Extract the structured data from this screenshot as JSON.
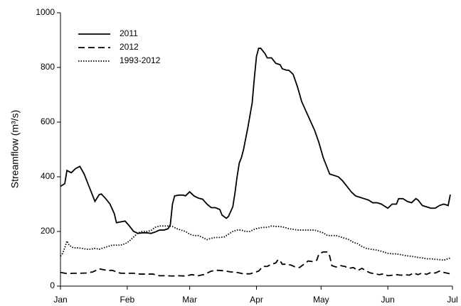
{
  "chart_data": {
    "type": "line",
    "y_label": "Streamflow (m³/s)",
    "xlim": [
      0,
      182
    ],
    "xticks": [
      {
        "value": 0,
        "label": "Jan"
      },
      {
        "value": 31,
        "label": "Feb"
      },
      {
        "value": 60,
        "label": "Mar"
      },
      {
        "value": 91,
        "label": "Apr"
      },
      {
        "value": 121,
        "label": "May"
      },
      {
        "value": 152,
        "label": "Jun"
      },
      {
        "value": 182,
        "label": "Jul"
      }
    ],
    "ylim": [
      0,
      1000
    ],
    "yticks": [
      0,
      200,
      400,
      600,
      800,
      1000
    ],
    "legend": "top-left",
    "series": [
      {
        "name": "2011",
        "color": "#000000",
        "dash": "solid",
        "x": [
          0,
          2,
          3,
          5,
          7,
          9,
          11,
          13,
          15,
          16,
          18,
          19,
          21,
          23,
          25,
          26,
          28,
          30,
          32,
          34,
          36,
          38,
          40,
          42,
          44,
          46,
          48,
          50,
          51,
          52,
          53,
          55,
          57,
          58,
          60,
          62,
          64,
          66,
          68,
          70,
          72,
          74,
          75,
          77,
          78,
          80,
          81,
          82,
          83,
          84,
          85,
          87,
          89,
          90,
          91,
          92,
          93,
          95,
          96,
          98,
          100,
          102,
          103,
          105,
          106,
          108,
          110,
          112,
          114,
          116,
          118,
          120,
          122,
          124,
          125,
          127,
          129,
          131,
          133,
          135,
          137,
          139,
          141,
          143,
          145,
          147,
          149,
          151,
          152,
          154,
          156,
          157,
          159,
          161,
          163,
          165,
          166,
          168,
          170,
          172,
          174,
          176,
          178,
          180,
          181
        ],
        "values": [
          365,
          375,
          423,
          415,
          430,
          438,
          410,
          370,
          330,
          310,
          335,
          337,
          320,
          300,
          265,
          232,
          235,
          238,
          220,
          200,
          193,
          195,
          195,
          193,
          198,
          205,
          205,
          210,
          225,
          300,
          330,
          333,
          333,
          330,
          345,
          330,
          322,
          318,
          300,
          287,
          287,
          280,
          260,
          248,
          255,
          290,
          340,
          400,
          450,
          470,
          500,
          580,
          670,
          760,
          840,
          870,
          870,
          850,
          835,
          835,
          815,
          810,
          795,
          790,
          790,
          775,
          730,
          675,
          640,
          605,
          570,
          525,
          470,
          430,
          410,
          405,
          400,
          385,
          365,
          345,
          330,
          325,
          320,
          315,
          305,
          305,
          300,
          290,
          285,
          300,
          300,
          320,
          320,
          310,
          305,
          320,
          315,
          295,
          290,
          285,
          285,
          295,
          300,
          295,
          335
        ]
      },
      {
        "name": "2012",
        "color": "#000000",
        "dash": "dashed",
        "x": [
          0,
          3,
          6,
          9,
          12,
          15,
          18,
          20,
          22,
          24,
          26,
          28,
          31,
          34,
          37,
          40,
          43,
          46,
          49,
          52,
          55,
          58,
          61,
          64,
          67,
          70,
          73,
          76,
          79,
          82,
          85,
          88,
          90,
          92,
          94,
          96,
          98,
          100,
          101,
          102,
          103,
          105,
          107,
          109,
          111,
          113,
          115,
          117,
          119,
          120,
          122,
          124,
          125,
          126,
          128,
          130,
          132,
          134,
          136,
          138,
          140,
          142,
          144,
          146,
          148,
          150,
          152,
          154,
          156,
          158,
          160,
          162,
          164,
          166,
          168,
          170,
          172,
          174,
          176,
          178,
          181
        ],
        "values": [
          50,
          46,
          47,
          47,
          48,
          52,
          63,
          60,
          57,
          58,
          52,
          47,
          47,
          47,
          44,
          44,
          44,
          38,
          38,
          37,
          38,
          37,
          42,
          38,
          43,
          55,
          58,
          56,
          52,
          50,
          45,
          45,
          50,
          55,
          72,
          72,
          80,
          85,
          97,
          92,
          80,
          80,
          77,
          70,
          68,
          80,
          92,
          90,
          95,
          118,
          125,
          125,
          110,
          75,
          70,
          75,
          72,
          65,
          68,
          57,
          65,
          55,
          48,
          45,
          42,
          45,
          38,
          40,
          42,
          40,
          42,
          40,
          48,
          42,
          48,
          43,
          50,
          48,
          55,
          50,
          45
        ]
      },
      {
        "name": "1993-2012",
        "color": "#000000",
        "dash": "dotted",
        "x": [
          0,
          1,
          2,
          3,
          4,
          6,
          8,
          10,
          12,
          14,
          16,
          18,
          20,
          22,
          24,
          26,
          28,
          30,
          32,
          34,
          36,
          38,
          40,
          42,
          44,
          46,
          48,
          50,
          52,
          54,
          56,
          58,
          60,
          62,
          64,
          66,
          68,
          70,
          72,
          74,
          76,
          78,
          80,
          82,
          84,
          86,
          88,
          90,
          92,
          94,
          96,
          98,
          100,
          102,
          104,
          106,
          108,
          110,
          112,
          114,
          116,
          118,
          120,
          122,
          124,
          126,
          128,
          130,
          132,
          134,
          136,
          138,
          140,
          142,
          144,
          146,
          148,
          150,
          152,
          154,
          156,
          158,
          160,
          162,
          164,
          166,
          168,
          170,
          172,
          174,
          176,
          178,
          181
        ],
        "values": [
          110,
          120,
          140,
          165,
          150,
          140,
          140,
          138,
          135,
          135,
          138,
          135,
          140,
          145,
          150,
          150,
          150,
          155,
          165,
          180,
          195,
          200,
          200,
          203,
          215,
          220,
          220,
          220,
          218,
          210,
          205,
          200,
          190,
          185,
          185,
          178,
          170,
          175,
          178,
          178,
          180,
          190,
          200,
          205,
          205,
          200,
          200,
          208,
          212,
          215,
          215,
          220,
          218,
          218,
          215,
          210,
          208,
          205,
          205,
          205,
          205,
          205,
          200,
          195,
          185,
          185,
          185,
          180,
          175,
          170,
          160,
          155,
          145,
          138,
          135,
          133,
          130,
          125,
          120,
          118,
          118,
          115,
          112,
          110,
          108,
          105,
          103,
          100,
          100,
          98,
          97,
          95,
          103
        ]
      }
    ]
  }
}
